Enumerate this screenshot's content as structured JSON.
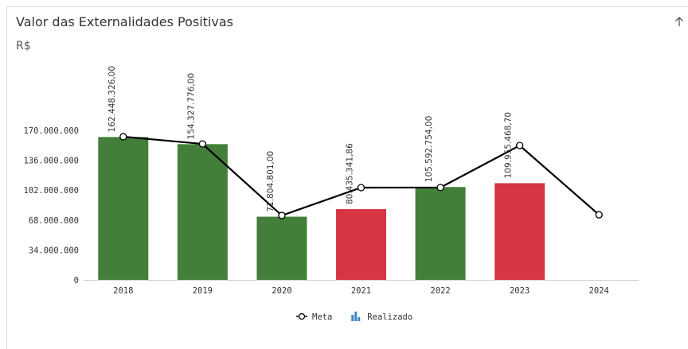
{
  "chart_data": {
    "type": "bar-line",
    "title": "Valor das Externalidades Positivas",
    "subtitle": "R$",
    "categories": [
      "2018",
      "2019",
      "2020",
      "2021",
      "2022",
      "2023",
      "2024"
    ],
    "series": [
      {
        "name": "Meta",
        "type": "line",
        "color": "#000000",
        "values": [
          162800000,
          154600000,
          73200000,
          104900000,
          105000000,
          152800000,
          74000000
        ]
      },
      {
        "name": "Realizado",
        "type": "bar",
        "color": "#3a87c8",
        "colors": [
          "#437f3a",
          "#437f3a",
          "#437f3a",
          "#d53641",
          "#437f3a",
          "#d53641",
          null
        ],
        "values": [
          162448326,
          154327776,
          71804801,
          80435341.86,
          105592754,
          109955468.7,
          null
        ],
        "value_labels": [
          "162.448.326,00",
          "154.327.776,00",
          "71.804.801,00",
          "80.435.341,86",
          "105.592.754,00",
          "109.955.468,70",
          null
        ]
      }
    ],
    "ylim": [
      0,
      170000000
    ],
    "yticks": [
      {
        "value": 0,
        "label": "0"
      },
      {
        "value": 34000000,
        "label": "34.000.000"
      },
      {
        "value": 68000000,
        "label": "68.000.000"
      },
      {
        "value": 102000000,
        "label": "102.000.000"
      },
      {
        "value": 136000000,
        "label": "136.000.000"
      },
      {
        "value": 170000000,
        "label": "170.000.000"
      }
    ],
    "grid": false,
    "legend": "bottom"
  }
}
